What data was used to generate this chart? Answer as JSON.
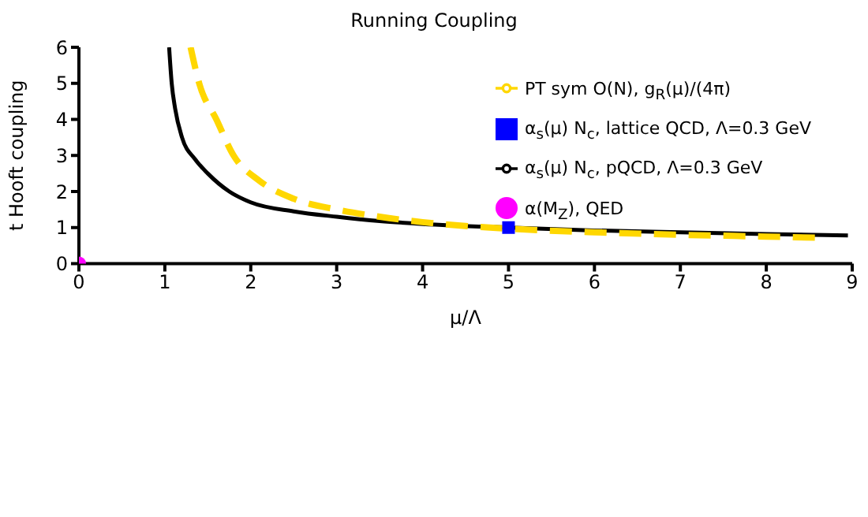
{
  "chart_data": {
    "type": "line",
    "title": "Running Coupling",
    "xlabel": "μ/Λ",
    "ylabel": "t Hooft coupling",
    "xlim": [
      0,
      9
    ],
    "xticks": [
      0,
      1,
      2,
      3,
      4,
      5,
      6,
      7,
      8,
      9
    ],
    "ylim": [
      0,
      6
    ],
    "yticks": [
      0,
      1,
      2,
      3,
      4,
      5,
      6
    ],
    "grid": false,
    "legend": "top right",
    "series": [
      {
        "name": "α$_{s}$(μ) N$_{c}$, pQCD, Λ=0.3 GeV",
        "color": "#000000",
        "line_style": "solid",
        "marker": "none",
        "x": [
          1.05,
          1.08,
          1.12,
          1.2,
          1.35,
          1.5,
          1.75,
          2,
          2.5,
          3,
          3.5,
          4,
          5,
          6,
          7,
          8,
          8.95
        ],
        "values": [
          6,
          5,
          4.3,
          3.5,
          2.9,
          2.5,
          2,
          1.7,
          1.45,
          1.3,
          1.18,
          1.1,
          1,
          0.92,
          0.87,
          0.82,
          0.78
        ]
      },
      {
        "name": "α$_{s}$(μ) N$_{c}$, lattice QCD, Λ=0.3 GeV",
        "type": "scatter",
        "color": "#0000ff",
        "marker": "square",
        "x": [
          5
        ],
        "values": [
          1
        ]
      },
      {
        "name": "PT sym O(N), g$_{R}$(μ)/(4π)",
        "color": "#ffd700",
        "line_style": "dashed",
        "marker": "none",
        "x": [
          1.3,
          1.4,
          1.6,
          1.8,
          2.1,
          2.5,
          3,
          3.5,
          4,
          5,
          6,
          7,
          8,
          8.6
        ],
        "values": [
          6,
          5,
          4,
          3,
          2.3,
          1.8,
          1.5,
          1.3,
          1.15,
          0.97,
          0.87,
          0.8,
          0.75,
          0.72
        ]
      },
      {
        "name": "α(M$_{Z}$), QED",
        "type": "scatter",
        "color": "#ff00ff",
        "marker": "circle",
        "x": [
          0
        ],
        "values": [
          0
        ]
      }
    ]
  }
}
